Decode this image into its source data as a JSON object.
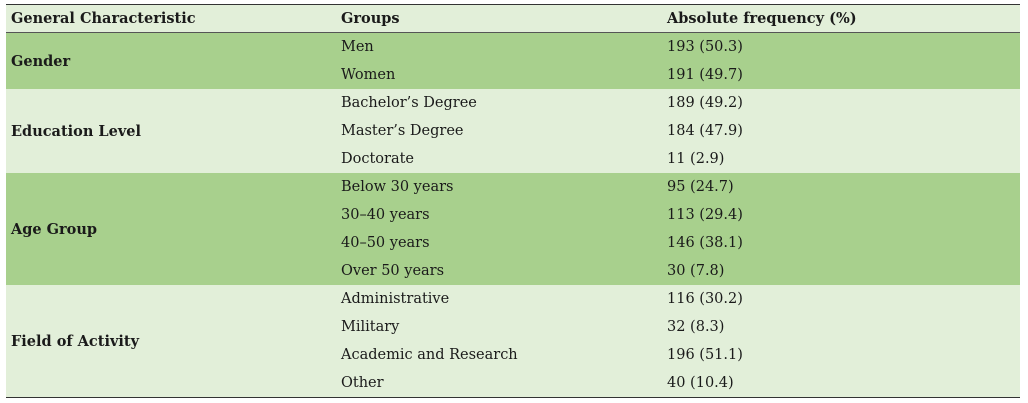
{
  "table": {
    "headers": [
      "General Characteristic",
      "Groups",
      "Absolute frequency (%)"
    ],
    "sections": [
      {
        "characteristic": "Gender",
        "rows": [
          {
            "group": "Men",
            "frequency": "193 (50.3)"
          },
          {
            "group": "Women",
            "frequency": "191 (49.7)"
          }
        ]
      },
      {
        "characteristic": "Education Level",
        "rows": [
          {
            "group": "Bachelor’s Degree",
            "frequency": "189 (49.2)"
          },
          {
            "group": "Master’s Degree",
            "frequency": "184 (47.9)"
          },
          {
            "group": "Doctorate",
            "frequency": "11 (2.9)"
          }
        ]
      },
      {
        "characteristic": "Age Group",
        "rows": [
          {
            "group": "Below 30 years",
            "frequency": "95 (24.7)"
          },
          {
            "group": "30–40 years",
            "frequency": "113 (29.4)"
          },
          {
            "group": "40–50 years",
            "frequency": "146 (38.1)"
          },
          {
            "group": "Over 50 years",
            "frequency": "30 (7.8)"
          }
        ]
      },
      {
        "characteristic": "Field of Activity",
        "rows": [
          {
            "group": "Administrative",
            "frequency": "116 (30.2)"
          },
          {
            "group": "Military",
            "frequency": "32 (8.3)"
          },
          {
            "group": "Academic and Research",
            "frequency": "196 (51.1)"
          },
          {
            "group": "Other",
            "frequency": "40 (10.4)"
          }
        ]
      }
    ]
  },
  "colors": {
    "band_dark": "#a8d08d",
    "band_light": "#e2efd9",
    "rule": "#333333"
  }
}
